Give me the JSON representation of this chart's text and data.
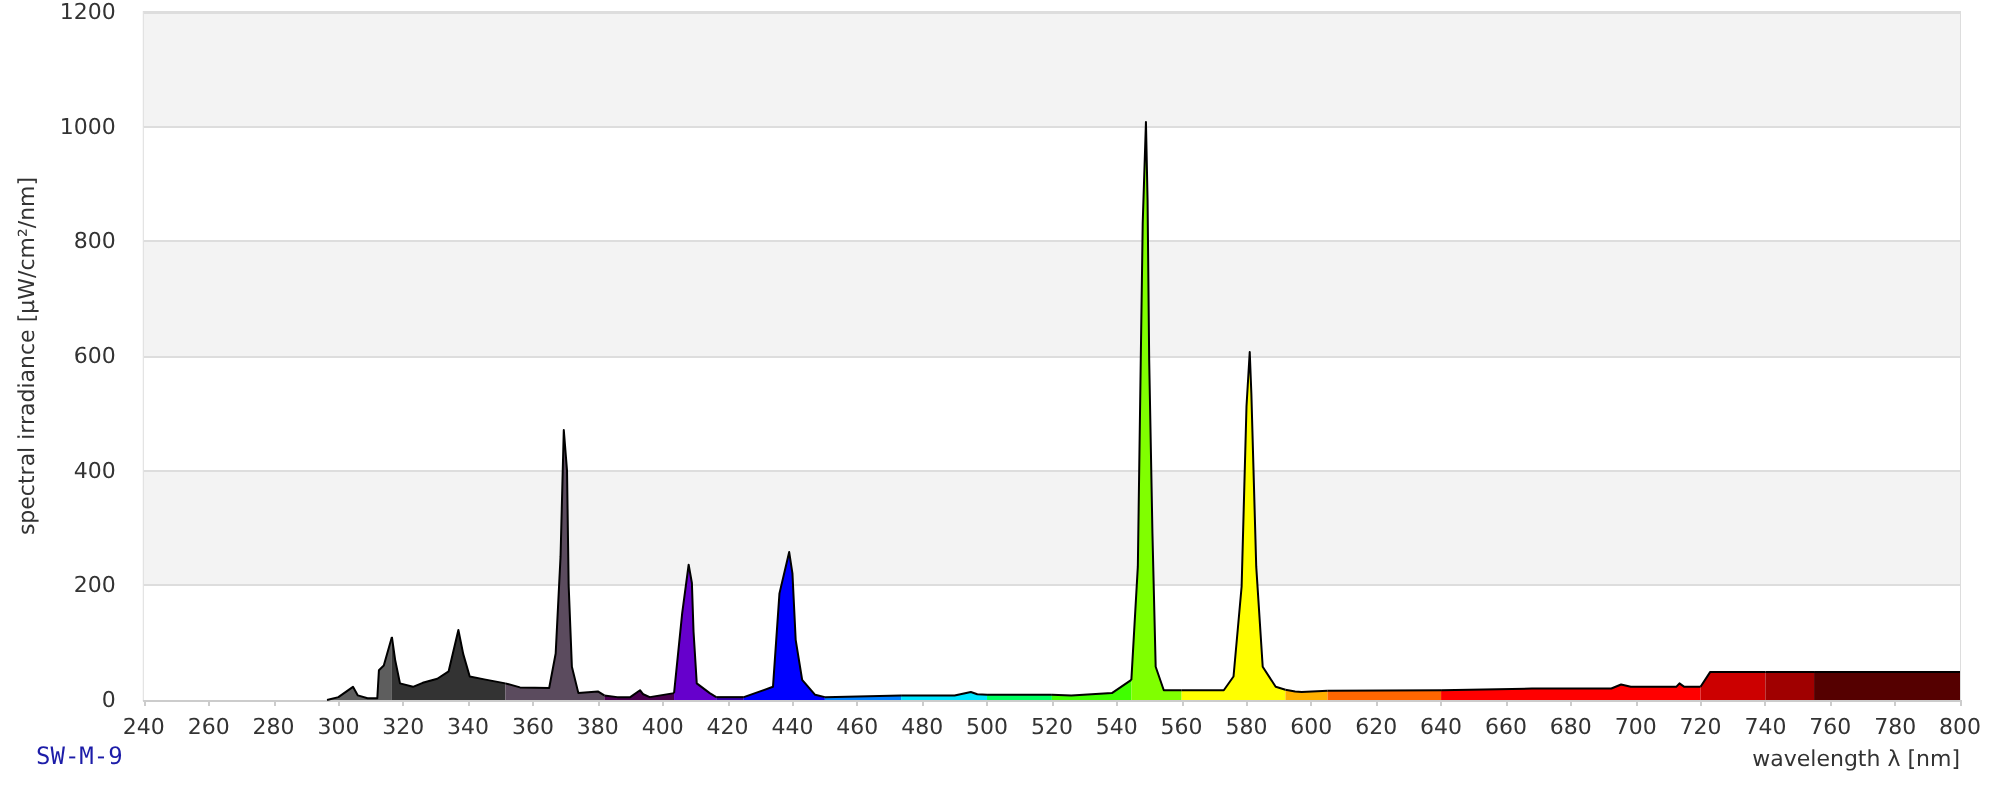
{
  "chart_data": {
    "type": "area",
    "xlabel": "wavelength λ [nm]",
    "ylabel": "spectral irradiance [µW/cm²/nm]",
    "annotations": [
      "SW-M-9"
    ],
    "xlim": [
      240,
      800
    ],
    "xticks": [
      240,
      260,
      280,
      300,
      320,
      340,
      360,
      380,
      400,
      420,
      440,
      460,
      480,
      500,
      520,
      540,
      560,
      580,
      600,
      620,
      640,
      660,
      680,
      700,
      720,
      740,
      760,
      780,
      800
    ],
    "ylim": [
      0,
      1200
    ],
    "yticks": [
      0,
      200,
      400,
      600,
      800,
      1000,
      1200
    ],
    "grid": "y",
    "marker": "none",
    "series": [
      {
        "color": "#5e5e5e",
        "x": [
          296.5,
          300,
          304.5,
          306,
          309,
          312,
          312.5,
          314,
          316.5
        ],
        "values": [
          0,
          5,
          23,
          8,
          3,
          3,
          52,
          60,
          110
        ]
      },
      {
        "color": "#333333",
        "x": [
          316.5,
          317.5,
          319,
          323,
          326,
          330.5,
          334,
          337,
          338.5,
          340.5,
          345,
          351.5
        ],
        "values": [
          110,
          70,
          29,
          23,
          30,
          37,
          50,
          122,
          80,
          41,
          36,
          29
        ]
      },
      {
        "color": "#5b4b5e",
        "x": [
          351.5,
          356,
          365,
          367,
          368.5,
          369.5,
          370.5,
          371,
          372,
          374,
          378,
          380,
          382
        ],
        "values": [
          29,
          22,
          21,
          81,
          250,
          471,
          400,
          200,
          58,
          12,
          14,
          15,
          8
        ]
      },
      {
        "color": "#4a004f",
        "x": [
          382,
          386,
          390,
          393,
          394,
          396,
          403.5
        ],
        "values": [
          8,
          5,
          5,
          17,
          10,
          5,
          12
        ]
      },
      {
        "color": "#6600cc",
        "x": [
          403.5,
          406,
          408,
          409,
          409.5,
          410.5,
          414.5,
          416.5
        ],
        "values": [
          12,
          151,
          236,
          204,
          120,
          29,
          12,
          5
        ]
      },
      {
        "color": "#3300aa",
        "x": [
          416.5,
          425
        ],
        "values": [
          5,
          5
        ]
      },
      {
        "color": "#0000ff",
        "x": [
          425,
          434,
          436,
          439,
          440,
          441,
          443,
          447,
          450
        ],
        "values": [
          5,
          23,
          186,
          258,
          221,
          105,
          35,
          9,
          5
        ]
      },
      {
        "color": "#0080ff",
        "x": [
          450,
          473.5
        ],
        "values": [
          5,
          8
        ]
      },
      {
        "color": "#00e5ff",
        "x": [
          473.5,
          490,
          495,
          497,
          500
        ],
        "values": [
          8,
          8,
          14,
          10,
          9
        ]
      },
      {
        "color": "#00ff60",
        "x": [
          500,
          520
        ],
        "values": [
          9,
          9
        ]
      },
      {
        "color": "#40ff00",
        "x": [
          520,
          526,
          538.5,
          544.5
        ],
        "values": [
          9,
          8,
          12,
          35
        ]
      },
      {
        "color": "#80ff00",
        "x": [
          544.5,
          546.5,
          548,
          549,
          549.5,
          550,
          551,
          552,
          554.5,
          560
        ],
        "values": [
          35,
          233,
          831,
          1008,
          872,
          593,
          291,
          58,
          17,
          17
        ]
      },
      {
        "color": "#ffff00",
        "x": [
          560,
          573,
          576,
          578.5,
          580,
          581,
          581.5,
          583,
          585,
          589,
          592
        ],
        "values": [
          17,
          17,
          41,
          198,
          512,
          607,
          535,
          233,
          58,
          23,
          18
        ]
      },
      {
        "color": "#ffb000",
        "x": [
          592,
          595,
          597,
          605
        ],
        "values": [
          18,
          15,
          14,
          16
        ]
      },
      {
        "color": "#ff6600",
        "x": [
          605,
          640
        ],
        "values": [
          16,
          17
        ]
      },
      {
        "color": "#ff0000",
        "x": [
          640,
          668,
          692.5,
          695.5,
          698.5,
          712.5,
          713.5,
          715,
          720
        ],
        "values": [
          17,
          20,
          20,
          27,
          23,
          23,
          29,
          23,
          23
        ]
      },
      {
        "color": "#cc0000",
        "x": [
          720,
          723,
          740
        ],
        "values": [
          23,
          49,
          49
        ]
      },
      {
        "color": "#a00000",
        "x": [
          740,
          755
        ],
        "values": [
          49,
          49
        ]
      },
      {
        "color": "#550000",
        "x": [
          755,
          800
        ],
        "values": [
          49,
          49
        ]
      }
    ]
  }
}
